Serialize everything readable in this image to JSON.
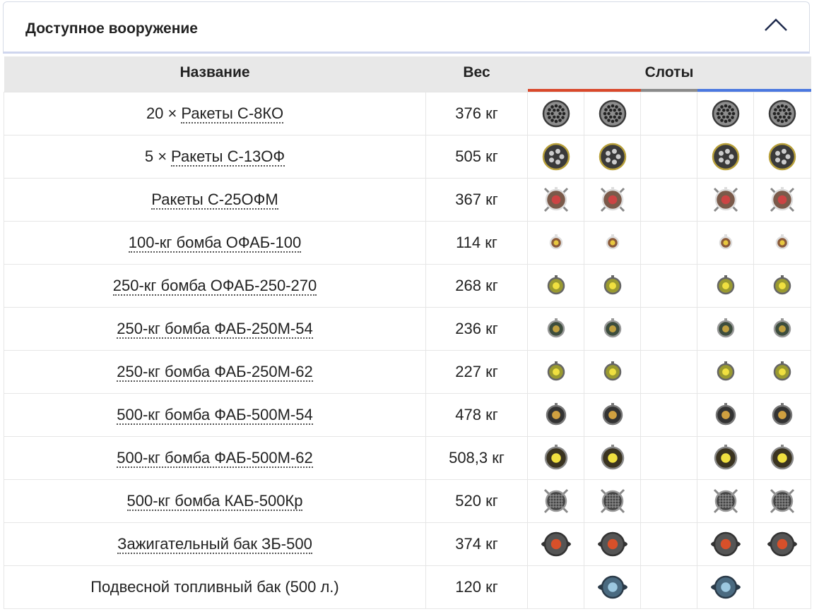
{
  "panel": {
    "title": "Доступное вооружение"
  },
  "table": {
    "headers": [
      "Название",
      "Вес",
      "Слоты"
    ],
    "rows": [
      {
        "prefix": "20 ×",
        "name": "Ракеты С-8КО",
        "weight": "376 кг"
      },
      {
        "prefix": "5 ×",
        "name": "Ракеты С-13ОФ",
        "weight": "505 кг"
      },
      {
        "name": "Ракеты С-25ОФМ",
        "weight": "367 кг"
      },
      {
        "name": "100-кг бомба ОФАБ-100",
        "weight": "114 кг"
      },
      {
        "name": "250-кг бомба ОФАБ-250-270",
        "weight": "268 кг"
      },
      {
        "name": "250-кг бомба ФАБ-250М-54",
        "weight": "236 кг"
      },
      {
        "name": "250-кг бомба ФАБ-250М-62",
        "weight": "227 кг"
      },
      {
        "name": "500-кг бомба ФАБ-500М-54",
        "weight": "478 кг"
      },
      {
        "name": "500-кг бомба ФАБ-500М-62",
        "weight": "508,3 кг"
      },
      {
        "name": "500-кг бомба КАБ-500Кр",
        "weight": "520 кг"
      },
      {
        "name": "Зажигательный бак ЗБ-500",
        "weight": "374 кг"
      },
      {
        "plain": "Подвесной топливный бак (500 л.)",
        "weight": "120 кг"
      }
    ]
  }
}
